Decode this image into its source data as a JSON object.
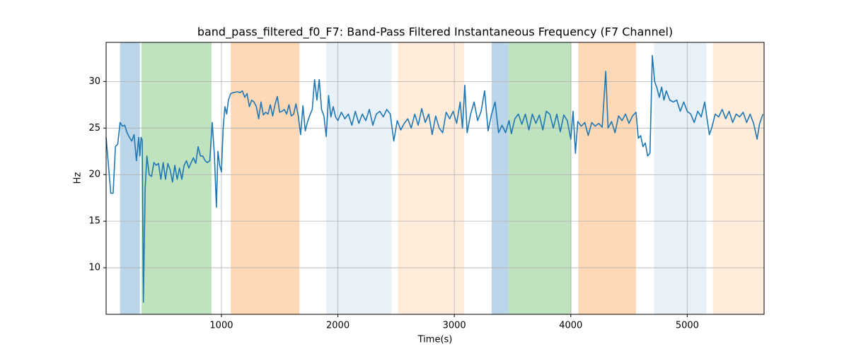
{
  "chart_data": {
    "type": "line",
    "title": "band_pass_filtered_f0_F7: Band-Pass Filtered Instantaneous Frequency (F7 Channel)",
    "x_label": "Time(s)",
    "y_label": "Hz",
    "xlim": [
      10,
      5660
    ],
    "ylim": [
      5,
      34.2
    ],
    "xticks": [
      1000,
      2000,
      3000,
      4000,
      5000
    ],
    "yticks": [
      10,
      15,
      20,
      25,
      30
    ],
    "grid": true,
    "color": "#1f77b4",
    "spans": [
      {
        "start": 130,
        "end": 300,
        "color": "#1f77b4",
        "opacity": 0.3
      },
      {
        "start": 313,
        "end": 915,
        "color": "#2ca02c",
        "opacity": 0.3
      },
      {
        "start": 1080,
        "end": 1670,
        "color": "#ff7f0e",
        "opacity": 0.3
      },
      {
        "start": 1900,
        "end": 2460,
        "color": "#1f77b4",
        "opacity": 0.1
      },
      {
        "start": 2515,
        "end": 3085,
        "color": "#ff7f0e",
        "opacity": 0.15
      },
      {
        "start": 3320,
        "end": 3465,
        "color": "#1f77b4",
        "opacity": 0.3
      },
      {
        "start": 3465,
        "end": 4005,
        "color": "#2ca02c",
        "opacity": 0.3
      },
      {
        "start": 4065,
        "end": 4560,
        "color": "#ff7f0e",
        "opacity": 0.3
      },
      {
        "start": 4715,
        "end": 5165,
        "color": "#1f77b4",
        "opacity": 0.1
      },
      {
        "start": 5220,
        "end": 5660,
        "color": "#ff7f0e",
        "opacity": 0.15
      }
    ],
    "x": [
      10,
      30,
      50,
      70,
      90,
      110,
      130,
      150,
      170,
      190,
      210,
      230,
      250,
      270,
      290,
      300,
      310,
      320,
      330,
      345,
      360,
      380,
      400,
      420,
      440,
      460,
      480,
      500,
      520,
      540,
      560,
      580,
      600,
      620,
      640,
      660,
      680,
      700,
      720,
      740,
      760,
      780,
      800,
      820,
      840,
      860,
      880,
      900,
      921,
      940,
      957,
      970,
      985,
      1000,
      1015,
      1030,
      1045,
      1060,
      1080,
      1100,
      1140,
      1160,
      1180,
      1200,
      1220,
      1240,
      1260,
      1280,
      1300,
      1320,
      1340,
      1360,
      1380,
      1400,
      1420,
      1440,
      1460,
      1480,
      1500,
      1520,
      1540,
      1560,
      1580,
      1600,
      1620,
      1640,
      1660,
      1680,
      1700,
      1720,
      1740,
      1760,
      1780,
      1800,
      1820,
      1840,
      1860,
      1880,
      1900,
      1920,
      1940,
      1960,
      1980,
      2000,
      2030,
      2060,
      2090,
      2120,
      2150,
      2180,
      2210,
      2240,
      2270,
      2300,
      2330,
      2360,
      2390,
      2420,
      2450,
      2480,
      2510,
      2540,
      2570,
      2600,
      2630,
      2660,
      2690,
      2720,
      2750,
      2780,
      2810,
      2840,
      2870,
      2900,
      2930,
      2960,
      2990,
      3020,
      3050,
      3070,
      3090,
      3110,
      3140,
      3170,
      3200,
      3230,
      3260,
      3290,
      3320,
      3350,
      3380,
      3410,
      3440,
      3470,
      3490,
      3520,
      3550,
      3580,
      3610,
      3640,
      3670,
      3700,
      3730,
      3760,
      3790,
      3820,
      3850,
      3880,
      3910,
      3940,
      3970,
      4000,
      4020,
      4040,
      4060,
      4090,
      4120,
      4150,
      4180,
      4210,
      4240,
      4270,
      4300,
      4320,
      4350,
      4380,
      4410,
      4440,
      4470,
      4500,
      4530,
      4560,
      4580,
      4600,
      4620,
      4640,
      4660,
      4680,
      4700,
      4720,
      4740,
      4760,
      4780,
      4800,
      4820,
      4850,
      4880,
      4910,
      4940,
      4970,
      5000,
      5030,
      5060,
      5090,
      5120,
      5150,
      5170,
      5190,
      5210,
      5240,
      5270,
      5300,
      5330,
      5360,
      5390,
      5420,
      5450,
      5480,
      5510,
      5540,
      5570,
      5600,
      5620,
      5650
    ],
    "values": [
      24,
      21,
      18,
      18,
      23,
      23.3,
      25.6,
      25.2,
      25.3,
      24.5,
      24,
      23.6,
      24.3,
      21.5,
      24,
      22,
      24,
      23.7,
      6.3,
      18.5,
      22,
      20,
      19.8,
      21.3,
      21,
      21.2,
      19.5,
      21.3,
      19.5,
      21.2,
      20.5,
      19.2,
      21,
      19.5,
      20.7,
      19.5,
      21,
      21.5,
      20.7,
      21.3,
      21.8,
      21.2,
      23,
      22,
      22,
      21.5,
      21.3,
      21.5,
      25.6,
      22,
      16.5,
      22.5,
      21,
      20.3,
      25,
      27.3,
      26.5,
      28,
      28.7,
      28.8,
      28.9,
      28.8,
      29,
      28.3,
      28.7,
      27.3,
      28,
      27.8,
      27.3,
      26,
      27.8,
      26.4,
      26.7,
      26.5,
      27.5,
      26.3,
      27.5,
      28.4,
      26.7,
      26.8,
      27,
      26.5,
      27.5,
      26.3,
      26.5,
      27.6,
      26.3,
      24.3,
      27.4,
      24.7,
      25.7,
      26.4,
      27,
      30.2,
      28,
      30.2,
      27,
      26.3,
      24.1,
      28.5,
      26.2,
      27.3,
      26.2,
      25.8,
      26.7,
      26,
      26.5,
      25.3,
      26.8,
      25.5,
      26.5,
      25.8,
      27,
      25.3,
      26.5,
      26.8,
      26.2,
      27,
      26.5,
      23.6,
      25.8,
      24.8,
      25.5,
      26,
      25,
      26.5,
      25.3,
      27.1,
      25.6,
      26.5,
      24.3,
      26.3,
      25,
      24.5,
      26.7,
      26,
      26.8,
      25.5,
      27.8,
      25,
      29.6,
      24.5,
      26.5,
      27.8,
      25.8,
      26.8,
      29,
      24.7,
      26.5,
      27.8,
      24.5,
      25.3,
      24.5,
      25.8,
      24.4,
      26,
      26.5,
      25.4,
      26.5,
      24.8,
      26.5,
      25.5,
      26.4,
      24.8,
      26.8,
      26.5,
      25,
      26.5,
      24.6,
      26.4,
      25.8,
      23.8,
      26.8,
      22.3,
      25.7,
      25.2,
      25.6,
      24.2,
      25.6,
      25.2,
      25.5,
      25.1,
      31.1,
      25,
      25.7,
      24.5,
      26.3,
      25.8,
      26.5,
      25.5,
      26.3,
      26.7,
      23.9,
      24.2,
      23,
      23.4,
      22,
      22.3,
      32.8,
      30,
      29.3,
      28.3,
      29.4,
      28,
      29,
      28,
      27.8,
      28,
      26.8,
      27.8,
      26.8,
      26.5,
      25.6,
      26.8,
      26.2,
      27.8,
      26,
      24.3,
      25,
      26.5,
      26.2,
      27,
      26,
      26.8,
      25.6,
      26.5,
      26.2,
      26.7,
      25.6,
      26.5,
      25.5,
      23.8,
      25.4,
      26.5
    ]
  }
}
